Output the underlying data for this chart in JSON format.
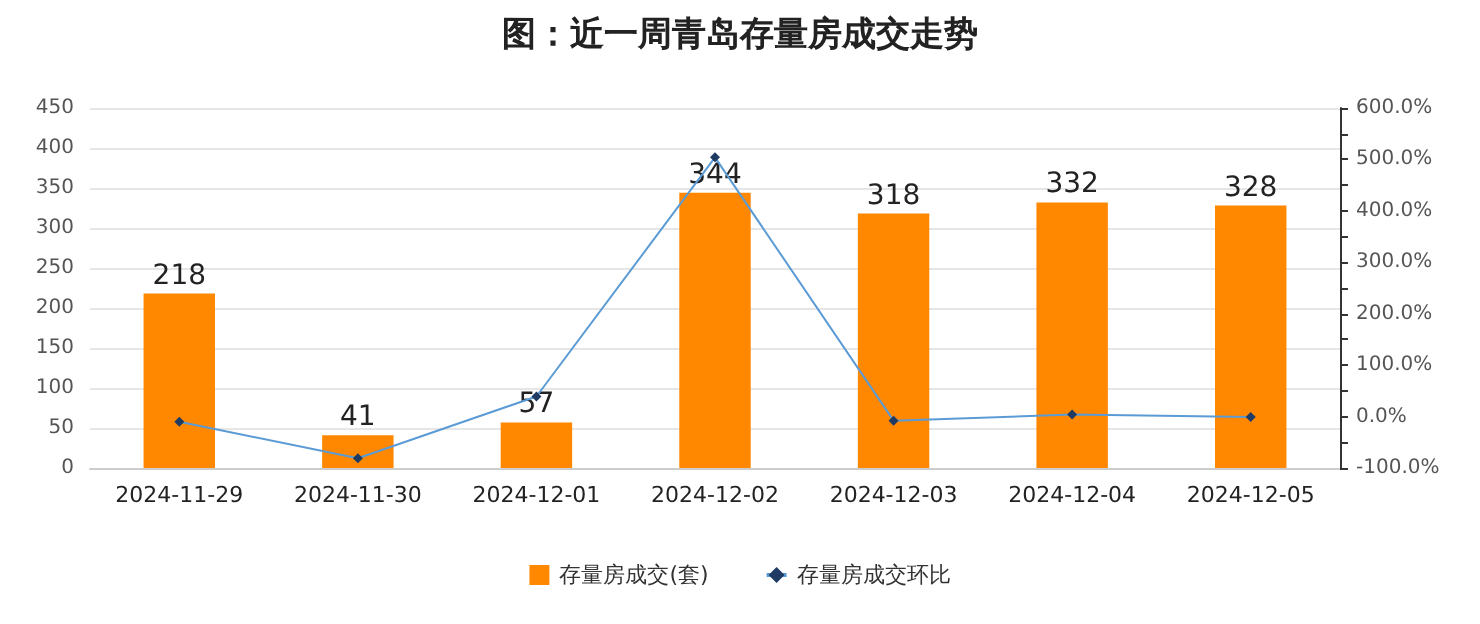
{
  "chart_data": {
    "type": "bar",
    "title": "图：近一周青岛存量房成交走势",
    "categories": [
      "2024-11-29",
      "2024-11-30",
      "2024-12-01",
      "2024-12-02",
      "2024-12-03",
      "2024-12-04",
      "2024-12-05"
    ],
    "series": [
      {
        "name": "存量房成交(套)",
        "color": "#ff8800",
        "values": [
          218,
          41,
          57,
          344,
          318,
          332,
          328
        ],
        "data_labels": true
      },
      {
        "name": "存量房成交环比",
        "type": "line",
        "axis": "y2",
        "color": "#5b9bd5",
        "marker": "diamond",
        "values": [
          -10,
          -81,
          39,
          504,
          -8,
          4,
          -1
        ]
      }
    ],
    "ylim": [
      0,
      450
    ],
    "yticks": [
      0,
      50,
      100,
      150,
      200,
      250,
      300,
      350,
      400,
      450
    ],
    "y2lim": [
      -100,
      600
    ],
    "y2ticks": [
      {
        "value": -100,
        "label": "-100.0%"
      },
      {
        "value": -50,
        "label": null
      },
      {
        "value": 0,
        "label": "0.0%"
      },
      {
        "value": 50,
        "label": null
      },
      {
        "value": 100,
        "label": "100.0%"
      },
      {
        "value": 150,
        "label": null
      },
      {
        "value": 200,
        "label": "200.0%"
      },
      {
        "value": 250,
        "label": null
      },
      {
        "value": 300,
        "label": "300.0%"
      },
      {
        "value": 350,
        "label": null
      },
      {
        "value": 400,
        "label": "400.0%"
      },
      {
        "value": 450,
        "label": null
      },
      {
        "value": 500,
        "label": "500.0%"
      },
      {
        "value": 550,
        "label": null
      },
      {
        "value": 600,
        "label": "600.0%"
      }
    ],
    "grid": "y",
    "legend": "bottom"
  }
}
